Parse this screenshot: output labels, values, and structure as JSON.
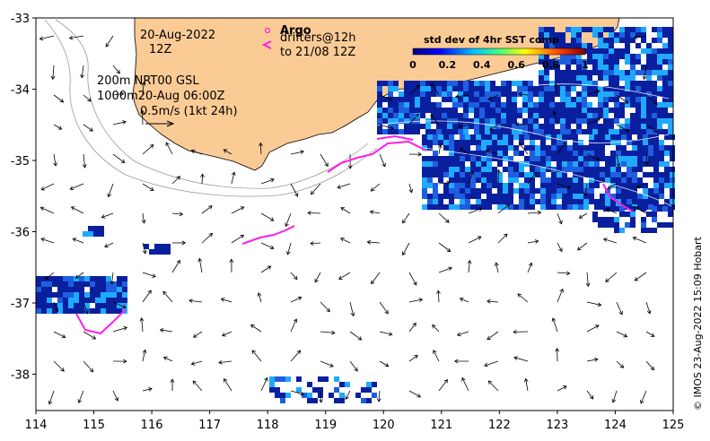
{
  "map": {
    "date_label": "20-Aug-2022",
    "time_label": "12Z",
    "contour_label": "200m  NRT00 GSL",
    "contour_label2": "1000m20-Aug 06:00Z",
    "scale_label": "0.5m/s (1kt 24h)",
    "argo_label": "Argo",
    "drifters_label": "drifters@12h",
    "drifters_label2": "to 21/08 12Z",
    "colorbar_title": "std dev of 4hr SST comp",
    "colorbar_ticks": [
      "0",
      "0.2",
      "0.4",
      "0.6",
      "0.8",
      "1"
    ],
    "credit": "© IMOS 23-Aug-2022 15:09 Hobart",
    "x_ticks": [
      "114",
      "115",
      "116",
      "117",
      "118",
      "119",
      "120",
      "121",
      "122",
      "123",
      "124",
      "125"
    ],
    "y_ticks": [
      "-33",
      "-34",
      "-35",
      "-36",
      "-37",
      "-38"
    ],
    "colors": {
      "land": "#fbcb96",
      "sst_low": "#0a1f9e",
      "sst_mid": "#1e5fe0",
      "sst_high": "#1faaff",
      "drifter": "#ff1ee8",
      "contour": "#999999"
    }
  }
}
